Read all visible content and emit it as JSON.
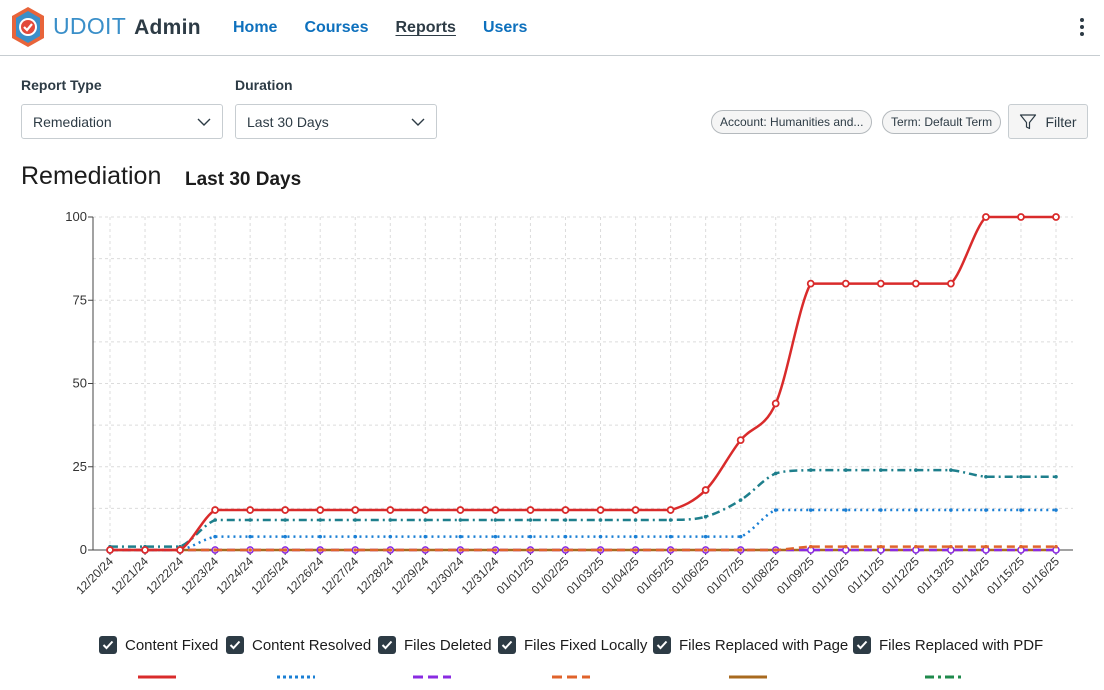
{
  "app": {
    "name": "UDOIT",
    "suffix": "Admin"
  },
  "nav": [
    {
      "label": "Home",
      "active": false
    },
    {
      "label": "Courses",
      "active": false
    },
    {
      "label": "Reports",
      "active": true
    },
    {
      "label": "Users",
      "active": false
    }
  ],
  "filters": {
    "report_type_label": "Report Type",
    "report_type_value": "Remediation",
    "duration_label": "Duration",
    "duration_value": "Last 30 Days",
    "pills": [
      "Account: Humanities and...",
      "Term: Default Term"
    ],
    "filter_button": "Filter"
  },
  "report": {
    "title": "Remediation",
    "subtitle": "Last 30 Days"
  },
  "colors": {
    "accent": "#0d70bd",
    "text": "#2d3b45",
    "checkbox": "#2d3b45"
  },
  "chart_data": {
    "type": "line",
    "title": "",
    "xlabel": "",
    "ylabel": "",
    "ylim": [
      0,
      100
    ],
    "yticks": [
      0,
      25,
      50,
      75,
      100
    ],
    "grid": true,
    "legend_placement": "bottom",
    "categories": [
      "12/20/24",
      "12/21/24",
      "12/22/24",
      "12/23/24",
      "12/24/24",
      "12/25/24",
      "12/26/24",
      "12/27/24",
      "12/28/24",
      "12/29/24",
      "12/30/24",
      "12/31/24",
      "01/01/25",
      "01/02/25",
      "01/03/25",
      "01/04/25",
      "01/05/25",
      "01/06/25",
      "01/07/25",
      "01/08/25",
      "01/09/25",
      "01/10/25",
      "01/11/25",
      "01/12/25",
      "01/13/25",
      "01/14/25",
      "01/15/25",
      "01/16/25"
    ],
    "series": [
      {
        "name": "Content Fixed",
        "color": "#d92b2b",
        "dash": "solid",
        "values": [
          0,
          0,
          0,
          12,
          12,
          12,
          12,
          12,
          12,
          12,
          12,
          12,
          12,
          12,
          12,
          12,
          12,
          18,
          33,
          44,
          80,
          80,
          80,
          80,
          80,
          100,
          100,
          100
        ]
      },
      {
        "name": "Content Resolved",
        "color": "#1a7fd4",
        "dash": "dotted",
        "values": [
          0,
          0,
          0,
          4,
          4,
          4,
          4,
          4,
          4,
          4,
          4,
          4,
          4,
          4,
          4,
          4,
          4,
          4,
          4,
          12,
          12,
          12,
          12,
          12,
          12,
          12,
          12,
          12
        ]
      },
      {
        "name": "Files Deleted",
        "color": "#8a2be2",
        "dash": "dashed",
        "values": [
          0,
          0,
          0,
          0,
          0,
          0,
          0,
          0,
          0,
          0,
          0,
          0,
          0,
          0,
          0,
          0,
          0,
          0,
          0,
          0,
          0,
          0,
          0,
          0,
          0,
          0,
          0,
          0
        ]
      },
      {
        "name": "Files Fixed Locally",
        "color": "#e0632b",
        "dash": "dashed",
        "values": [
          0,
          0,
          0,
          0,
          0,
          0,
          0,
          0,
          0,
          0,
          0,
          0,
          0,
          0,
          0,
          0,
          0,
          0,
          0,
          0,
          1,
          1,
          1,
          1,
          1,
          1,
          1,
          1
        ]
      },
      {
        "name": "Files Replaced with Page",
        "color": "#a86a1f",
        "dash": "solid",
        "values": [
          0,
          0,
          0,
          0,
          0,
          0,
          0,
          0,
          0,
          0,
          0,
          0,
          0,
          0,
          0,
          0,
          0,
          0,
          0,
          0,
          0,
          0,
          0,
          0,
          0,
          0,
          0,
          0
        ]
      },
      {
        "name": "Files Replaced with PDF",
        "color": "#1f8a4c",
        "dash": "dashdot",
        "values": [
          1,
          1,
          1,
          9,
          9,
          9,
          9,
          9,
          9,
          9,
          9,
          9,
          9,
          9,
          9,
          9,
          9,
          10,
          15,
          23,
          24,
          24,
          24,
          24,
          24,
          22,
          22,
          22
        ]
      }
    ],
    "teal_line": {
      "color": "#1e7f8c",
      "values": [
        1,
        1,
        1,
        9,
        9,
        9,
        9,
        9,
        9,
        9,
        9,
        9,
        9,
        9,
        9,
        9,
        9,
        10,
        15,
        23,
        24,
        24,
        24,
        24,
        24,
        22,
        22,
        22
      ]
    }
  }
}
